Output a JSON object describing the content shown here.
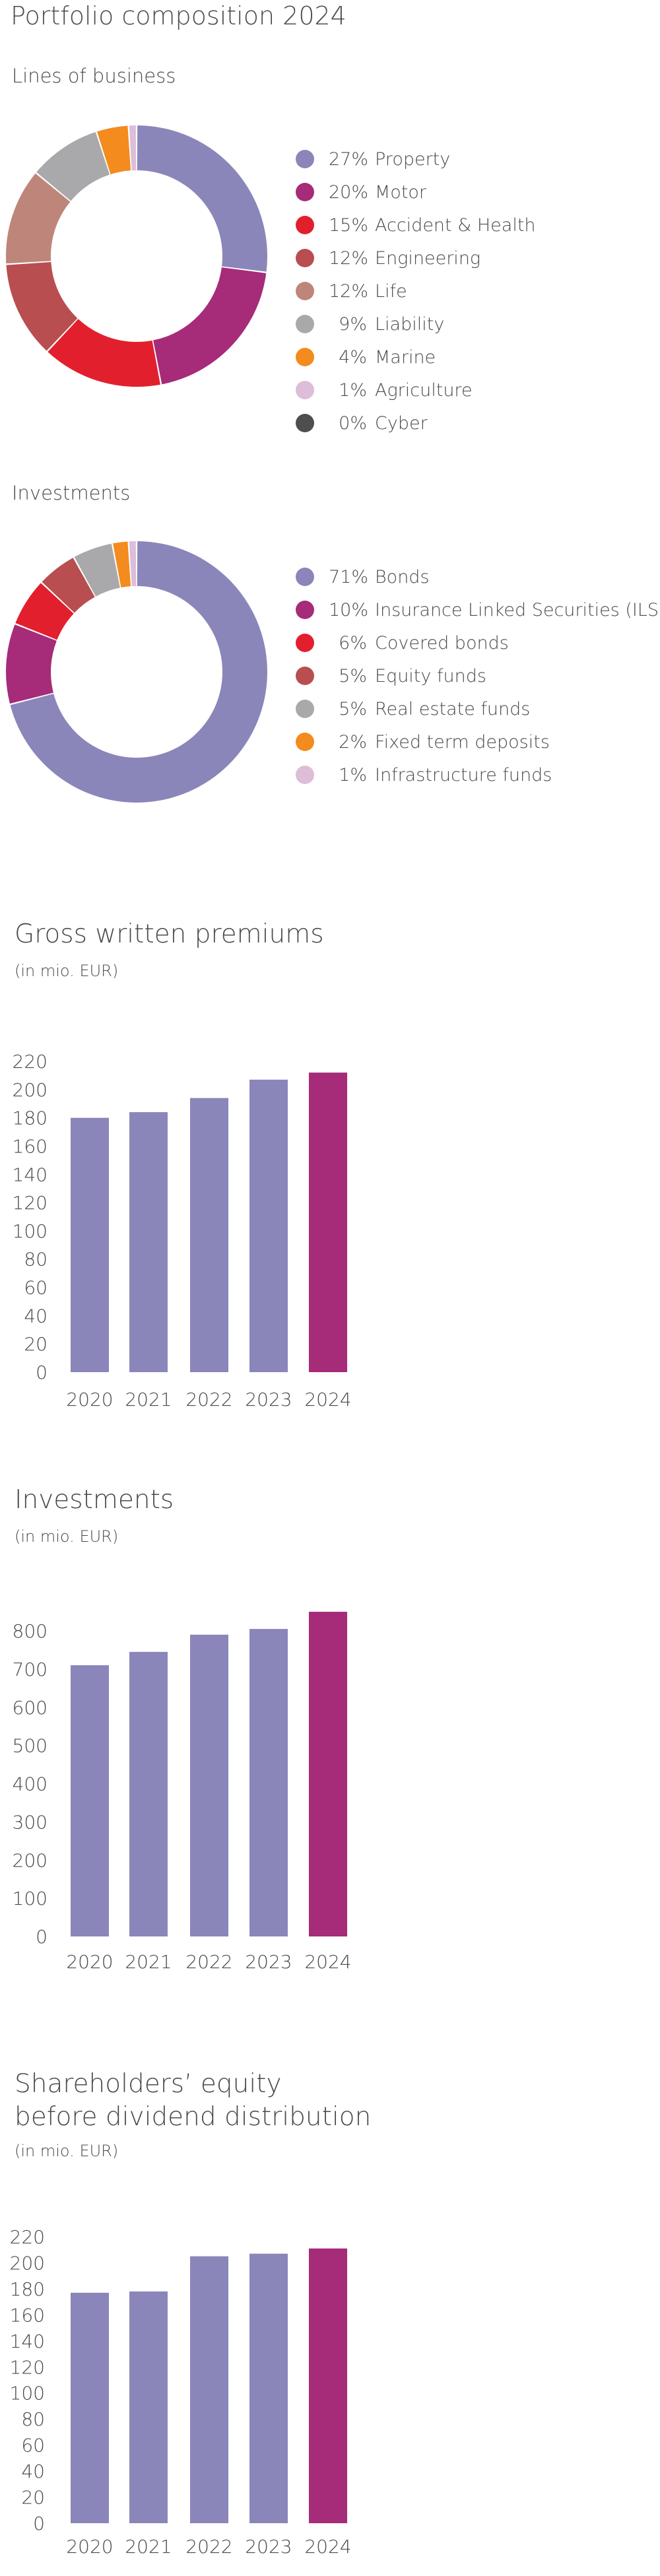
{
  "main_title": "Portfolio composition 2024",
  "donuts": [
    {
      "title": "Lines of business",
      "slices": [
        {
          "pct": "27%",
          "label": "Property",
          "value": 27,
          "color": "#8A86BA"
        },
        {
          "pct": "20%",
          "label": "Motor",
          "value": 20,
          "color": "#A62B78"
        },
        {
          "pct": "15%",
          "label": "Accident & Health",
          "value": 15,
          "color": "#E2202D"
        },
        {
          "pct": "12%",
          "label": "Engineering",
          "value": 12,
          "color": "#B84E50"
        },
        {
          "pct": "12%",
          "label": "Life",
          "value": 12,
          "color": "#BE867A"
        },
        {
          "pct": "9%",
          "label": "Liability",
          "value": 9,
          "color": "#A9A9AC"
        },
        {
          "pct": "4%",
          "label": "Marine",
          "value": 4,
          "color": "#F38B1E"
        },
        {
          "pct": "1%",
          "label": "Agriculture",
          "value": 1,
          "color": "#DDBDD8"
        },
        {
          "pct": "0%",
          "label": "Cyber",
          "value": 0,
          "color": "#4E4E4E"
        }
      ]
    },
    {
      "title": "Investments",
      "slices": [
        {
          "pct": "71%",
          "label": "Bonds",
          "value": 71,
          "color": "#8A86BA"
        },
        {
          "pct": "10%",
          "label": "Insurance Linked Securities (ILS)",
          "value": 10,
          "color": "#A62B78"
        },
        {
          "pct": "6%",
          "label": "Covered bonds",
          "value": 6,
          "color": "#E2202D"
        },
        {
          "pct": "5%",
          "label": "Equity funds",
          "value": 5,
          "color": "#B84E50"
        },
        {
          "pct": "5%",
          "label": "Real estate funds",
          "value": 5,
          "color": "#A9A9AC"
        },
        {
          "pct": "2%",
          "label": "Fixed term deposits",
          "value": 2,
          "color": "#F38B1E"
        },
        {
          "pct": "1%",
          "label": "Infrastructure funds",
          "value": 1,
          "color": "#DDBDD8"
        }
      ]
    }
  ],
  "chart_data": [
    {
      "type": "bar",
      "title_lines": [
        "Gross written premiums"
      ],
      "subtitle": "(in mio. EUR)",
      "categories": [
        "2020",
        "2021",
        "2022",
        "2023",
        "2024"
      ],
      "values": [
        180,
        184,
        194,
        207,
        212
      ],
      "ylim": [
        0,
        220
      ],
      "yticks": [
        0,
        20,
        40,
        60,
        80,
        100,
        120,
        140,
        160,
        180,
        200,
        220
      ],
      "colors": [
        "#8A86BA",
        "#8A86BA",
        "#8A86BA",
        "#8A86BA",
        "#A62B78"
      ]
    },
    {
      "type": "bar",
      "title_lines": [
        "Investments"
      ],
      "subtitle": "(in mio. EUR)",
      "categories": [
        "2020",
        "2021",
        "2022",
        "2023",
        "2024"
      ],
      "values": [
        710,
        745,
        790,
        805,
        850
      ],
      "ylim": [
        0,
        800
      ],
      "yticks": [
        0,
        100,
        200,
        300,
        400,
        500,
        600,
        700,
        800
      ],
      "colors": [
        "#8A86BA",
        "#8A86BA",
        "#8A86BA",
        "#8A86BA",
        "#A62B78"
      ]
    },
    {
      "type": "bar",
      "title_lines": [
        "Shareholders’ equity",
        "before dividend distribution"
      ],
      "subtitle": "(in mio. EUR)",
      "categories": [
        "2020",
        "2021",
        "2022",
        "2023",
        "2024"
      ],
      "values": [
        177,
        178,
        205,
        207,
        211
      ],
      "ylim": [
        0,
        220
      ],
      "yticks": [
        0,
        20,
        40,
        60,
        80,
        100,
        120,
        140,
        160,
        180,
        200,
        220
      ],
      "colors": [
        "#8A86BA",
        "#8A86BA",
        "#8A86BA",
        "#8A86BA",
        "#A62B78"
      ]
    }
  ]
}
